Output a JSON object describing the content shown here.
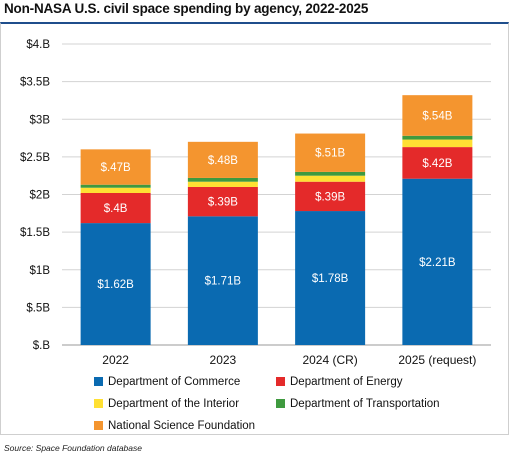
{
  "title": "Non-NASA U.S. civil space spending by agency, 2022-2025",
  "source": "Source: Space Foundation database",
  "chart_data": {
    "type": "bar",
    "stacked": true,
    "categories": [
      "2022",
      "2023",
      "2024 (CR)",
      "2025 (request)"
    ],
    "ylim": [
      0,
      4
    ],
    "yticks": [
      0,
      0.5,
      1,
      1.5,
      2,
      2.5,
      3,
      3.5,
      4
    ],
    "ytick_labels": [
      "$.B",
      "$.5B",
      "$1B",
      "$1.5B",
      "$2B",
      "$2.5B",
      "$3B",
      "$3.5B",
      "$4.B"
    ],
    "grid": true,
    "legend_position": "bottom",
    "series": [
      {
        "name": "Department of Commerce",
        "color": "#0a6ab1",
        "values": [
          1.62,
          1.71,
          1.78,
          2.21
        ],
        "labels": [
          "$1.62B",
          "$1.71B",
          "$1.78B",
          "$2.21B"
        ]
      },
      {
        "name": "Department of Energy",
        "color": "#e42a2a",
        "values": [
          0.4,
          0.39,
          0.39,
          0.42
        ],
        "labels": [
          "$.4B",
          "$.39B",
          "$.39B",
          "$.42B"
        ]
      },
      {
        "name": "Department of the Interior",
        "color": "#ffe033",
        "values": [
          0.07,
          0.07,
          0.08,
          0.1
        ],
        "labels": [
          "",
          "",
          "",
          ""
        ]
      },
      {
        "name": "Department of Transportation",
        "color": "#3f9a3f",
        "values": [
          0.04,
          0.05,
          0.05,
          0.05
        ],
        "labels": [
          "",
          "",
          "",
          ""
        ]
      },
      {
        "name": "National Science Foundation",
        "color": "#f4952f",
        "values": [
          0.47,
          0.48,
          0.51,
          0.54
        ],
        "labels": [
          "$.47B",
          "$.48B",
          "$.51B",
          "$.54B"
        ]
      }
    ]
  }
}
